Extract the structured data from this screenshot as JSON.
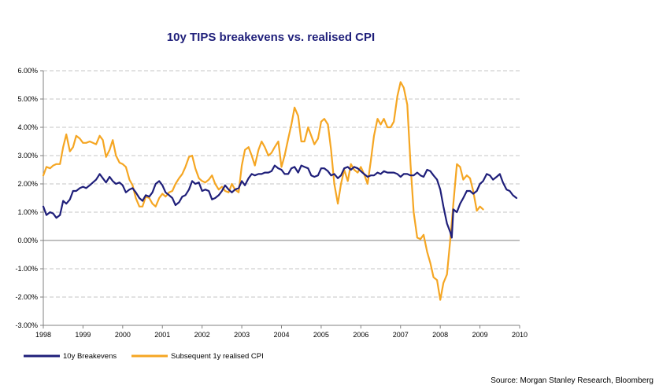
{
  "chart_data": {
    "type": "line",
    "title": "10y TIPS breakevens vs. realised CPI",
    "source": "Source: Morgan Stanley Research, Bloomberg",
    "xlabel": "",
    "ylabel": "",
    "ylim": [
      -3,
      6
    ],
    "xlim": [
      1998,
      2010
    ],
    "grid": true,
    "legend_position": "bottom",
    "y_ticks": [
      {
        "value": 6,
        "label": "6.00%"
      },
      {
        "value": 5,
        "label": "5.00%"
      },
      {
        "value": 4,
        "label": "4.00%"
      },
      {
        "value": 3,
        "label": "3.00%"
      },
      {
        "value": 2,
        "label": "2.00%"
      },
      {
        "value": 1,
        "label": "1.00%"
      },
      {
        "value": 0,
        "label": "0.00%"
      },
      {
        "value": -1,
        "label": "-1.00%"
      },
      {
        "value": -2,
        "label": "-2.00%"
      },
      {
        "value": -3,
        "label": "-3.00%"
      }
    ],
    "x_ticks": [
      {
        "value": 1998,
        "label": "1998"
      },
      {
        "value": 1999,
        "label": "1999"
      },
      {
        "value": 2000,
        "label": "2000"
      },
      {
        "value": 2001,
        "label": "2001"
      },
      {
        "value": 2002,
        "label": "2002"
      },
      {
        "value": 2003,
        "label": "2003"
      },
      {
        "value": 2004,
        "label": "2004"
      },
      {
        "value": 2005,
        "label": "2005"
      },
      {
        "value": 2006,
        "label": "2006"
      },
      {
        "value": 2007,
        "label": "2007"
      },
      {
        "value": 2008,
        "label": "2008"
      },
      {
        "value": 2009,
        "label": "2009"
      },
      {
        "value": 2010,
        "label": "2010"
      }
    ],
    "series": [
      {
        "name": "10y Breakevens",
        "color": "#1f1f7a",
        "points": [
          [
            1998.0,
            1.2
          ],
          [
            1998.08,
            0.9
          ],
          [
            1998.17,
            1.0
          ],
          [
            1998.25,
            0.95
          ],
          [
            1998.33,
            0.8
          ],
          [
            1998.42,
            0.9
          ],
          [
            1998.5,
            1.4
          ],
          [
            1998.58,
            1.3
          ],
          [
            1998.67,
            1.45
          ],
          [
            1998.75,
            1.75
          ],
          [
            1998.83,
            1.75
          ],
          [
            1998.92,
            1.85
          ],
          [
            1999.0,
            1.9
          ],
          [
            1999.08,
            1.85
          ],
          [
            1999.17,
            1.95
          ],
          [
            1999.25,
            2.05
          ],
          [
            1999.33,
            2.15
          ],
          [
            1999.42,
            2.35
          ],
          [
            1999.5,
            2.2
          ],
          [
            1999.58,
            2.05
          ],
          [
            1999.67,
            2.25
          ],
          [
            1999.75,
            2.1
          ],
          [
            1999.83,
            2.0
          ],
          [
            1999.92,
            2.05
          ],
          [
            2000.0,
            1.95
          ],
          [
            2000.08,
            1.7
          ],
          [
            2000.17,
            1.8
          ],
          [
            2000.25,
            1.85
          ],
          [
            2000.33,
            1.7
          ],
          [
            2000.42,
            1.5
          ],
          [
            2000.5,
            1.4
          ],
          [
            2000.58,
            1.6
          ],
          [
            2000.67,
            1.55
          ],
          [
            2000.75,
            1.7
          ],
          [
            2000.83,
            2.0
          ],
          [
            2000.92,
            2.1
          ],
          [
            2001.0,
            1.95
          ],
          [
            2001.08,
            1.7
          ],
          [
            2001.17,
            1.6
          ],
          [
            2001.25,
            1.5
          ],
          [
            2001.33,
            1.25
          ],
          [
            2001.42,
            1.35
          ],
          [
            2001.5,
            1.55
          ],
          [
            2001.58,
            1.6
          ],
          [
            2001.67,
            1.8
          ],
          [
            2001.75,
            2.1
          ],
          [
            2001.83,
            2.0
          ],
          [
            2001.92,
            2.05
          ],
          [
            2002.0,
            1.75
          ],
          [
            2002.08,
            1.8
          ],
          [
            2002.17,
            1.75
          ],
          [
            2002.25,
            1.45
          ],
          [
            2002.33,
            1.5
          ],
          [
            2002.42,
            1.6
          ],
          [
            2002.5,
            1.75
          ],
          [
            2002.58,
            1.95
          ],
          [
            2002.67,
            1.8
          ],
          [
            2002.75,
            1.7
          ],
          [
            2002.83,
            1.8
          ],
          [
            2002.92,
            1.85
          ],
          [
            2003.0,
            2.1
          ],
          [
            2003.08,
            1.95
          ],
          [
            2003.17,
            2.2
          ],
          [
            2003.25,
            2.35
          ],
          [
            2003.33,
            2.3
          ],
          [
            2003.42,
            2.35
          ],
          [
            2003.5,
            2.35
          ],
          [
            2003.58,
            2.4
          ],
          [
            2003.67,
            2.4
          ],
          [
            2003.75,
            2.45
          ],
          [
            2003.83,
            2.65
          ],
          [
            2003.92,
            2.55
          ],
          [
            2004.0,
            2.5
          ],
          [
            2004.08,
            2.35
          ],
          [
            2004.17,
            2.35
          ],
          [
            2004.25,
            2.55
          ],
          [
            2004.33,
            2.6
          ],
          [
            2004.42,
            2.4
          ],
          [
            2004.5,
            2.65
          ],
          [
            2004.58,
            2.6
          ],
          [
            2004.67,
            2.55
          ],
          [
            2004.75,
            2.3
          ],
          [
            2004.83,
            2.25
          ],
          [
            2004.92,
            2.3
          ],
          [
            2005.0,
            2.55
          ],
          [
            2005.08,
            2.55
          ],
          [
            2005.17,
            2.45
          ],
          [
            2005.25,
            2.3
          ],
          [
            2005.33,
            2.35
          ],
          [
            2005.42,
            2.2
          ],
          [
            2005.5,
            2.3
          ],
          [
            2005.58,
            2.55
          ],
          [
            2005.67,
            2.6
          ],
          [
            2005.75,
            2.5
          ],
          [
            2005.83,
            2.6
          ],
          [
            2005.92,
            2.55
          ],
          [
            2006.0,
            2.45
          ],
          [
            2006.08,
            2.35
          ],
          [
            2006.17,
            2.25
          ],
          [
            2006.25,
            2.3
          ],
          [
            2006.33,
            2.3
          ],
          [
            2006.42,
            2.4
          ],
          [
            2006.5,
            2.35
          ],
          [
            2006.58,
            2.45
          ],
          [
            2006.67,
            2.4
          ],
          [
            2006.75,
            2.4
          ],
          [
            2006.83,
            2.4
          ],
          [
            2006.92,
            2.35
          ],
          [
            2007.0,
            2.25
          ],
          [
            2007.08,
            2.35
          ],
          [
            2007.17,
            2.35
          ],
          [
            2007.25,
            2.3
          ],
          [
            2007.33,
            2.3
          ],
          [
            2007.42,
            2.4
          ],
          [
            2007.5,
            2.3
          ],
          [
            2007.58,
            2.25
          ],
          [
            2007.67,
            2.5
          ],
          [
            2007.75,
            2.45
          ],
          [
            2007.83,
            2.3
          ],
          [
            2007.92,
            2.15
          ],
          [
            2008.0,
            1.8
          ],
          [
            2008.08,
            1.2
          ],
          [
            2008.17,
            0.6
          ],
          [
            2008.25,
            0.3
          ],
          [
            2008.29,
            0.1
          ],
          [
            2008.33,
            1.1
          ],
          [
            2008.42,
            1.0
          ],
          [
            2008.5,
            1.3
          ],
          [
            2008.58,
            1.5
          ],
          [
            2008.67,
            1.75
          ],
          [
            2008.75,
            1.75
          ],
          [
            2008.83,
            1.65
          ],
          [
            2008.92,
            1.75
          ],
          [
            2009.0,
            2.0
          ],
          [
            2009.08,
            2.1
          ],
          [
            2009.17,
            2.35
          ],
          [
            2009.25,
            2.3
          ],
          [
            2009.33,
            2.15
          ],
          [
            2009.42,
            2.25
          ],
          [
            2009.5,
            2.35
          ],
          [
            2009.58,
            2.05
          ],
          [
            2009.67,
            1.8
          ],
          [
            2009.75,
            1.75
          ],
          [
            2009.83,
            1.6
          ],
          [
            2009.92,
            1.5
          ]
        ]
      },
      {
        "name": "Subsequent 1y realised CPI",
        "color": "#f5a623",
        "points": [
          [
            1998.0,
            2.3
          ],
          [
            1998.08,
            2.6
          ],
          [
            1998.17,
            2.55
          ],
          [
            1998.25,
            2.65
          ],
          [
            1998.33,
            2.7
          ],
          [
            1998.42,
            2.7
          ],
          [
            1998.5,
            3.3
          ],
          [
            1998.58,
            3.75
          ],
          [
            1998.67,
            3.15
          ],
          [
            1998.75,
            3.3
          ],
          [
            1998.83,
            3.7
          ],
          [
            1998.92,
            3.6
          ],
          [
            1999.0,
            3.45
          ],
          [
            1999.08,
            3.45
          ],
          [
            1999.17,
            3.5
          ],
          [
            1999.25,
            3.45
          ],
          [
            1999.33,
            3.4
          ],
          [
            1999.42,
            3.7
          ],
          [
            1999.5,
            3.55
          ],
          [
            1999.58,
            2.95
          ],
          [
            1999.67,
            3.2
          ],
          [
            1999.75,
            3.55
          ],
          [
            1999.83,
            3.0
          ],
          [
            1999.92,
            2.75
          ],
          [
            2000.0,
            2.7
          ],
          [
            2000.08,
            2.6
          ],
          [
            2000.17,
            2.15
          ],
          [
            2000.25,
            1.95
          ],
          [
            2000.33,
            1.5
          ],
          [
            2000.42,
            1.2
          ],
          [
            2000.5,
            1.2
          ],
          [
            2000.58,
            1.55
          ],
          [
            2000.67,
            1.5
          ],
          [
            2000.75,
            1.3
          ],
          [
            2000.83,
            1.2
          ],
          [
            2000.92,
            1.5
          ],
          [
            2001.0,
            1.65
          ],
          [
            2001.08,
            1.55
          ],
          [
            2001.17,
            1.7
          ],
          [
            2001.25,
            1.75
          ],
          [
            2001.33,
            2.0
          ],
          [
            2001.42,
            2.2
          ],
          [
            2001.5,
            2.35
          ],
          [
            2001.58,
            2.6
          ],
          [
            2001.67,
            2.95
          ],
          [
            2001.75,
            3.0
          ],
          [
            2001.83,
            2.55
          ],
          [
            2001.92,
            2.2
          ],
          [
            2002.0,
            2.1
          ],
          [
            2002.08,
            2.05
          ],
          [
            2002.17,
            2.15
          ],
          [
            2002.25,
            2.3
          ],
          [
            2002.33,
            2.0
          ],
          [
            2002.42,
            1.8
          ],
          [
            2002.5,
            1.9
          ],
          [
            2002.58,
            1.75
          ],
          [
            2002.67,
            1.7
          ],
          [
            2002.75,
            2.0
          ],
          [
            2002.83,
            1.8
          ],
          [
            2002.92,
            1.7
          ],
          [
            2003.0,
            2.65
          ],
          [
            2003.08,
            3.2
          ],
          [
            2003.17,
            3.3
          ],
          [
            2003.25,
            3.0
          ],
          [
            2003.33,
            2.65
          ],
          [
            2003.42,
            3.2
          ],
          [
            2003.5,
            3.5
          ],
          [
            2003.58,
            3.3
          ],
          [
            2003.67,
            3.0
          ],
          [
            2003.75,
            3.1
          ],
          [
            2003.83,
            3.3
          ],
          [
            2003.92,
            3.5
          ],
          [
            2004.0,
            2.6
          ],
          [
            2004.08,
            3.0
          ],
          [
            2004.17,
            3.6
          ],
          [
            2004.25,
            4.1
          ],
          [
            2004.33,
            4.7
          ],
          [
            2004.42,
            4.4
          ],
          [
            2004.5,
            3.5
          ],
          [
            2004.58,
            3.5
          ],
          [
            2004.67,
            4.0
          ],
          [
            2004.75,
            3.7
          ],
          [
            2004.83,
            3.4
          ],
          [
            2004.92,
            3.6
          ],
          [
            2005.0,
            4.2
          ],
          [
            2005.08,
            4.3
          ],
          [
            2005.17,
            4.1
          ],
          [
            2005.25,
            3.2
          ],
          [
            2005.33,
            2.0
          ],
          [
            2005.42,
            1.3
          ],
          [
            2005.5,
            2.0
          ],
          [
            2005.58,
            2.5
          ],
          [
            2005.67,
            2.1
          ],
          [
            2005.75,
            2.7
          ],
          [
            2005.83,
            2.5
          ],
          [
            2005.92,
            2.4
          ],
          [
            2006.0,
            2.6
          ],
          [
            2006.08,
            2.35
          ],
          [
            2006.17,
            2.0
          ],
          [
            2006.25,
            2.8
          ],
          [
            2006.33,
            3.7
          ],
          [
            2006.42,
            4.3
          ],
          [
            2006.5,
            4.1
          ],
          [
            2006.58,
            4.3
          ],
          [
            2006.67,
            4.0
          ],
          [
            2006.75,
            4.0
          ],
          [
            2006.83,
            4.2
          ],
          [
            2006.92,
            5.1
          ],
          [
            2007.0,
            5.6
          ],
          [
            2007.08,
            5.4
          ],
          [
            2007.17,
            4.8
          ],
          [
            2007.25,
            2.7
          ],
          [
            2007.33,
            1.0
          ],
          [
            2007.42,
            0.1
          ],
          [
            2007.5,
            0.05
          ],
          [
            2007.58,
            0.2
          ],
          [
            2007.67,
            -0.4
          ],
          [
            2007.75,
            -0.8
          ],
          [
            2007.83,
            -1.3
          ],
          [
            2007.92,
            -1.4
          ],
          [
            2008.0,
            -2.1
          ],
          [
            2008.08,
            -1.5
          ],
          [
            2008.17,
            -1.2
          ],
          [
            2008.25,
            0.0
          ],
          [
            2008.33,
            1.3
          ],
          [
            2008.42,
            2.7
          ],
          [
            2008.5,
            2.6
          ],
          [
            2008.58,
            2.15
          ],
          [
            2008.67,
            2.3
          ],
          [
            2008.75,
            2.2
          ],
          [
            2008.83,
            1.75
          ],
          [
            2008.92,
            1.05
          ],
          [
            2009.0,
            1.2
          ],
          [
            2009.08,
            1.1
          ]
        ]
      }
    ]
  }
}
